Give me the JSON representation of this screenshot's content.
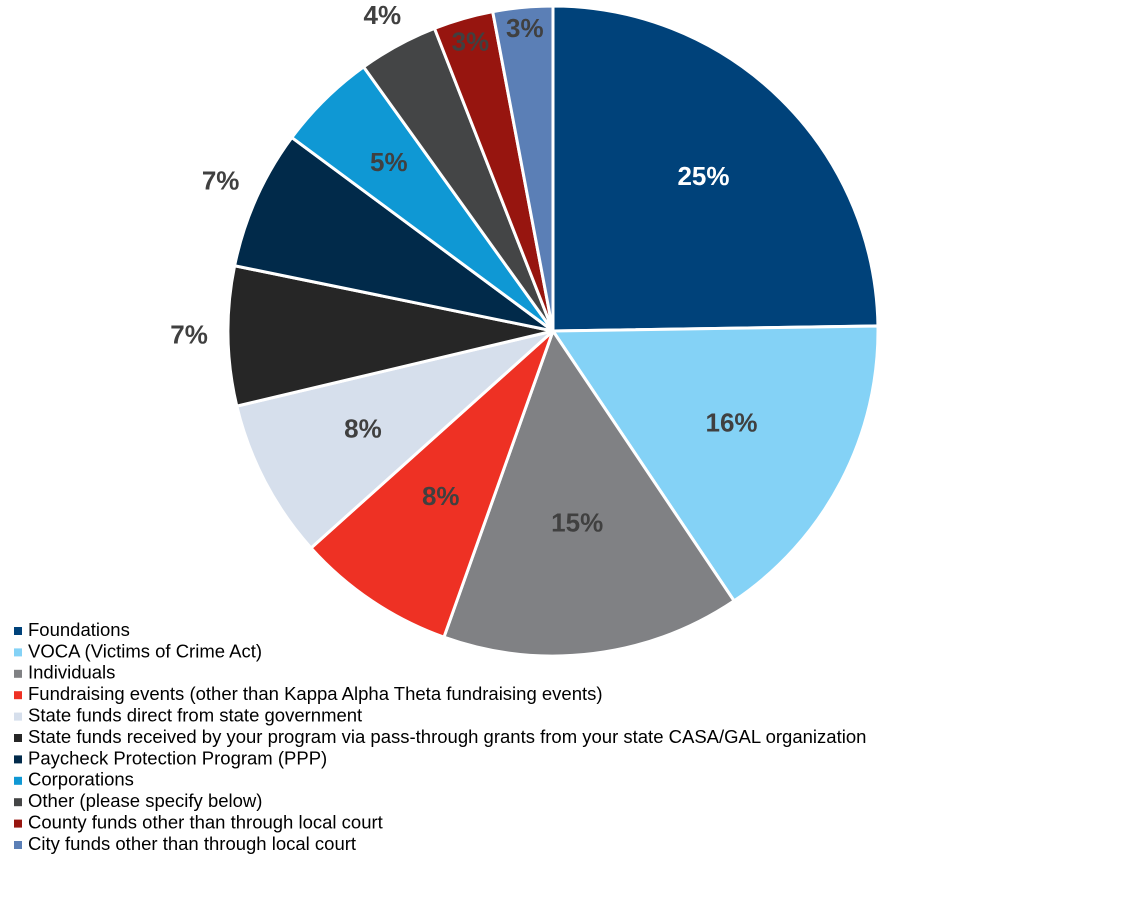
{
  "chart_data": {
    "type": "pie",
    "categories": [
      "Foundations",
      "VOCA (Victims of Crime Act)",
      "Individuals",
      "Fundraising events (other than Kappa Alpha Theta fundraising events)",
      "State funds direct from state government",
      "State funds received by your program via pass-through grants from your state CASA/GAL organization",
      "Paycheck Protection Program (PPP)",
      "Corporations",
      "Other (please specify below)",
      "County funds other than through local court",
      "City funds other than through local court"
    ],
    "values": [
      25,
      16,
      15,
      8,
      8,
      7,
      7,
      5,
      4,
      3,
      3
    ],
    "value_labels": [
      "25%",
      "16%",
      "15%",
      "8%",
      "8%",
      "7%",
      "7%",
      "5%",
      "4%",
      "3%",
      "3%"
    ],
    "colors": [
      "#00427a",
      "#84d2f6",
      "#808184",
      "#ee3124",
      "#d6dfec",
      "#262626",
      "#012a4a",
      "#0f98d4",
      "#444546",
      "#97150f",
      "#5b7fb6"
    ]
  }
}
